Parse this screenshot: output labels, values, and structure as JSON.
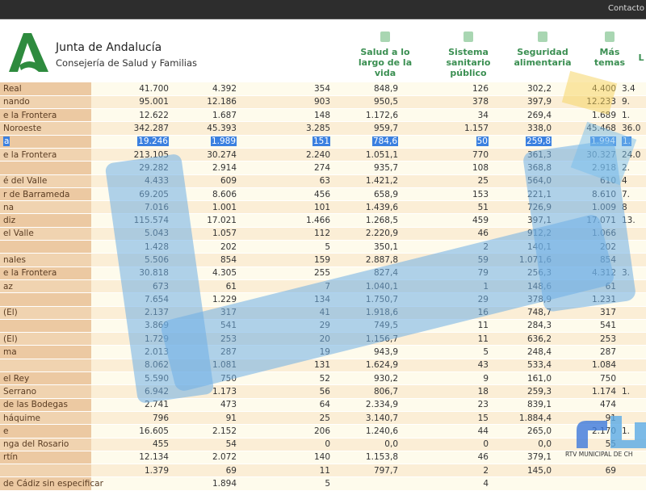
{
  "topbar": {
    "contact": "Contacto"
  },
  "brand": {
    "title": "Junta de Andalucía",
    "subtitle": "Consejería de Salud y Familias",
    "color": "#2e8b3e"
  },
  "nav": [
    {
      "label": "Salud a lo largo de la vida",
      "icon": "book-plus-icon"
    },
    {
      "label": "Sistema sanitario público",
      "icon": "hospital-icon"
    },
    {
      "label": "Seguridad alimentaria",
      "icon": "test-tubes-icon"
    },
    {
      "label": "Más temas",
      "icon": "grid-icon"
    },
    {
      "label": "L",
      "icon": "more-icon"
    }
  ],
  "rows": [
    [
      "Real",
      "41.700",
      "4.392",
      "354",
      "848,9",
      "126",
      "302,2",
      "4.400",
      "3.4"
    ],
    [
      "nando",
      "95.001",
      "12.186",
      "903",
      "950,5",
      "378",
      "397,9",
      "12.233",
      "9."
    ],
    [
      "e la Frontera",
      "12.622",
      "1.687",
      "148",
      "1.172,6",
      "34",
      "269,4",
      "1.689",
      "1."
    ],
    [
      "Noroeste",
      "342.287",
      "45.393",
      "3.285",
      "959,7",
      "1.157",
      "338,0",
      "45.468",
      "36.0"
    ],
    [
      "a",
      "19.246",
      "1.989",
      "151",
      "784,6",
      "50",
      "259,8",
      "1.994",
      "1."
    ],
    [
      "e la Frontera",
      "213.105",
      "30.274",
      "2.240",
      "1.051,1",
      "770",
      "361,3",
      "30.327",
      "24.0"
    ],
    [
      "",
      "29.282",
      "2.914",
      "274",
      "935,7",
      "108",
      "368,8",
      "2.918",
      "2."
    ],
    [
      "é del Valle",
      "4.433",
      "609",
      "63",
      "1.421,2",
      "25",
      "564,0",
      "610",
      "4"
    ],
    [
      "r de Barrameda",
      "69.205",
      "8.606",
      "456",
      "658,9",
      "153",
      "221,1",
      "8.610",
      "7."
    ],
    [
      "na",
      "7.016",
      "1.001",
      "101",
      "1.439,6",
      "51",
      "726,9",
      "1.009",
      "8"
    ],
    [
      "diz",
      "115.574",
      "17.021",
      "1.466",
      "1.268,5",
      "459",
      "397,1",
      "17.071",
      "13."
    ],
    [
      "el Valle",
      "5.043",
      "1.057",
      "112",
      "2.220,9",
      "46",
      "912,2",
      "1.066",
      ""
    ],
    [
      "",
      "1.428",
      "202",
      "5",
      "350,1",
      "2",
      "140,1",
      "202",
      ""
    ],
    [
      "nales",
      "5.506",
      "854",
      "159",
      "2.887,8",
      "59",
      "1.071,6",
      "854",
      ""
    ],
    [
      "e la Frontera",
      "30.818",
      "4.305",
      "255",
      "827,4",
      "79",
      "256,3",
      "4.312",
      "3."
    ],
    [
      "az",
      "673",
      "61",
      "7",
      "1.040,1",
      "1",
      "148,6",
      "61",
      ""
    ],
    [
      "",
      "7.654",
      "1.229",
      "134",
      "1.750,7",
      "29",
      "378,9",
      "1.231",
      ""
    ],
    [
      "(El)",
      "2.137",
      "317",
      "41",
      "1.918,6",
      "16",
      "748,7",
      "317",
      ""
    ],
    [
      "",
      "3.869",
      "541",
      "29",
      "749,5",
      "11",
      "284,3",
      "541",
      ""
    ],
    [
      "(El)",
      "1.729",
      "253",
      "20",
      "1.156,7",
      "11",
      "636,2",
      "253",
      ""
    ],
    [
      "ma",
      "2.013",
      "287",
      "19",
      "943,9",
      "5",
      "248,4",
      "287",
      ""
    ],
    [
      "",
      "8.062",
      "1.081",
      "131",
      "1.624,9",
      "43",
      "533,4",
      "1.084",
      ""
    ],
    [
      "el Rey",
      "5.590",
      "750",
      "52",
      "930,2",
      "9",
      "161,0",
      "750",
      ""
    ],
    [
      "Serrano",
      "6.942",
      "1.173",
      "56",
      "806,7",
      "18",
      "259,3",
      "1.174",
      "1."
    ],
    [
      "de las Bodegas",
      "2.741",
      "473",
      "64",
      "2.334,9",
      "23",
      "839,1",
      "474",
      ""
    ],
    [
      "háquime",
      "796",
      "91",
      "25",
      "3.140,7",
      "15",
      "1.884,4",
      "91",
      ""
    ],
    [
      "e",
      "16.605",
      "2.152",
      "206",
      "1.240,6",
      "44",
      "265,0",
      "2.170",
      "1."
    ],
    [
      "nga del Rosario",
      "455",
      "54",
      "0",
      "0,0",
      "0",
      "0,0",
      "55",
      ""
    ],
    [
      "rtín",
      "12.134",
      "2.072",
      "140",
      "1.153,8",
      "46",
      "379,1",
      "",
      ""
    ],
    [
      "",
      "1.379",
      "69",
      "11",
      "797,7",
      "2",
      "145,0",
      "69",
      ""
    ],
    [
      "de Cádiz sin especificar",
      "",
      "1.894",
      "5",
      "",
      "4",
      "",
      "",
      ""
    ]
  ],
  "selected_row": 4,
  "watermark": {
    "text": "RTV MUNICIPAL DE CH",
    "color": "#6eafe6"
  }
}
